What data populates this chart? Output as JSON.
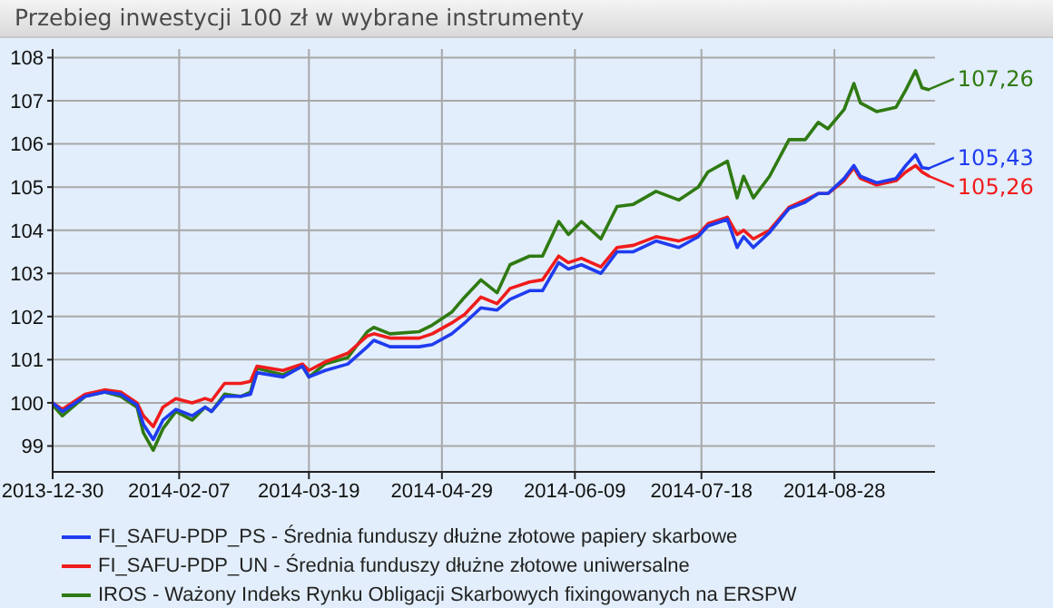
{
  "chart_data": {
    "type": "line",
    "title": "Przebieg inwestycji 100 zł w wybrane instrumenty",
    "x": [
      "2013-12-30",
      "2014-01-02",
      "2014-01-09",
      "2014-01-15",
      "2014-01-20",
      "2014-01-25",
      "2014-01-27",
      "2014-01-30",
      "2014-02-02",
      "2014-02-06",
      "2014-02-11",
      "2014-02-15",
      "2014-02-17",
      "2014-02-21",
      "2014-02-26",
      "2014-03-01",
      "2014-03-03",
      "2014-03-11",
      "2014-03-17",
      "2014-03-19",
      "2014-03-24",
      "2014-03-31",
      "2014-04-06",
      "2014-04-08",
      "2014-04-13",
      "2014-04-22",
      "2014-04-26",
      "2014-05-02",
      "2014-05-06",
      "2014-05-11",
      "2014-05-16",
      "2014-05-20",
      "2014-05-26",
      "2014-05-30",
      "2014-06-04",
      "2014-06-07",
      "2014-06-11",
      "2014-06-17",
      "2014-06-22",
      "2014-06-27",
      "2014-07-04",
      "2014-07-11",
      "2014-07-17",
      "2014-07-20",
      "2014-07-26",
      "2014-07-29",
      "2014-07-31",
      "2014-08-03",
      "2014-08-08",
      "2014-08-14",
      "2014-08-19",
      "2014-08-23",
      "2014-08-26",
      "2014-08-31",
      "2014-09-03",
      "2014-09-05",
      "2014-09-10",
      "2014-09-16",
      "2014-09-19",
      "2014-09-22",
      "2014-09-24",
      "2014-09-26"
    ],
    "series": [
      {
        "name": "FI_SAFU-PDP_PS - Średnia funduszy dłużne złotowe papiery skarbowe",
        "color": "#1f3cf0",
        "values": [
          100.0,
          99.8,
          100.15,
          100.25,
          100.2,
          99.95,
          99.5,
          99.15,
          99.6,
          99.85,
          99.7,
          99.9,
          99.8,
          100.15,
          100.15,
          100.2,
          100.7,
          100.6,
          100.85,
          100.6,
          100.75,
          100.9,
          101.3,
          101.45,
          101.3,
          101.3,
          101.35,
          101.6,
          101.85,
          102.2,
          102.15,
          102.4,
          102.6,
          102.6,
          103.25,
          103.1,
          103.2,
          103.0,
          103.5,
          103.5,
          103.75,
          103.6,
          103.85,
          104.1,
          104.25,
          103.6,
          103.85,
          103.6,
          103.95,
          104.5,
          104.65,
          104.85,
          104.85,
          105.2,
          105.5,
          105.25,
          105.1,
          105.2,
          105.5,
          105.75,
          105.45,
          105.43
        ]
      },
      {
        "name": "FI_SAFU-PDP_UN - Średnia funduszy dłużne złotowe uniwersalne",
        "color": "#f01c1c",
        "values": [
          100.0,
          99.85,
          100.2,
          100.3,
          100.25,
          100.0,
          99.7,
          99.45,
          99.9,
          100.1,
          100.0,
          100.1,
          100.05,
          100.45,
          100.45,
          100.5,
          100.85,
          100.75,
          100.9,
          100.75,
          100.95,
          101.15,
          101.55,
          101.6,
          101.5,
          101.5,
          101.6,
          101.85,
          102.05,
          102.45,
          102.3,
          102.65,
          102.8,
          102.85,
          103.4,
          103.25,
          103.35,
          103.15,
          103.6,
          103.65,
          103.85,
          103.75,
          103.9,
          104.15,
          104.3,
          103.9,
          104.0,
          103.8,
          104.0,
          104.53,
          104.7,
          104.85,
          104.85,
          105.15,
          105.45,
          105.2,
          105.05,
          105.15,
          105.35,
          105.5,
          105.35,
          105.26
        ]
      },
      {
        "name": "IROS - Ważony Indeks Rynku Obligacji Skarbowych fixingowanych na ERSPW",
        "color": "#2f7a12",
        "values": [
          99.95,
          99.7,
          100.15,
          100.25,
          100.15,
          99.9,
          99.3,
          98.9,
          99.4,
          99.8,
          99.6,
          99.9,
          99.8,
          100.2,
          100.15,
          100.25,
          100.8,
          100.65,
          100.85,
          100.6,
          100.9,
          101.05,
          101.65,
          101.75,
          101.6,
          101.65,
          101.8,
          102.1,
          102.45,
          102.85,
          102.55,
          103.2,
          103.4,
          103.4,
          104.2,
          103.9,
          104.2,
          103.8,
          104.55,
          104.6,
          104.9,
          104.7,
          105.0,
          105.35,
          105.6,
          104.75,
          105.25,
          104.75,
          105.25,
          106.1,
          106.1,
          106.5,
          106.35,
          106.8,
          107.4,
          106.95,
          106.75,
          106.85,
          107.25,
          107.7,
          107.3,
          107.26
        ]
      }
    ],
    "xlim": [
      "2013-12-30",
      "2014-09-28"
    ],
    "xticks": [
      {
        "value": "2013-12-30",
        "label": "2013-12-30"
      },
      {
        "value": "2014-02-07",
        "label": "2014-02-07"
      },
      {
        "value": "2014-03-19",
        "label": "2014-03-19"
      },
      {
        "value": "2014-04-29",
        "label": "2014-04-29"
      },
      {
        "value": "2014-06-09",
        "label": "2014-06-09"
      },
      {
        "value": "2014-07-18",
        "label": "2014-07-18"
      },
      {
        "value": "2014-08-28",
        "label": "2014-08-28"
      }
    ],
    "ylim": [
      98.4,
      108.2
    ],
    "yticks": [
      99,
      100,
      101,
      102,
      103,
      104,
      105,
      106,
      107,
      108
    ],
    "annotations": [
      {
        "text": "105,43",
        "x": "2014-09-26",
        "y": 105.43
      },
      {
        "text": "105,26",
        "x": "2014-09-26",
        "y": 105.26
      },
      {
        "text": "107,26",
        "x": "2014-09-26",
        "y": 107.26
      }
    ],
    "grid": true,
    "legend": "bottom",
    "marker": "none",
    "line_style": "solid"
  }
}
